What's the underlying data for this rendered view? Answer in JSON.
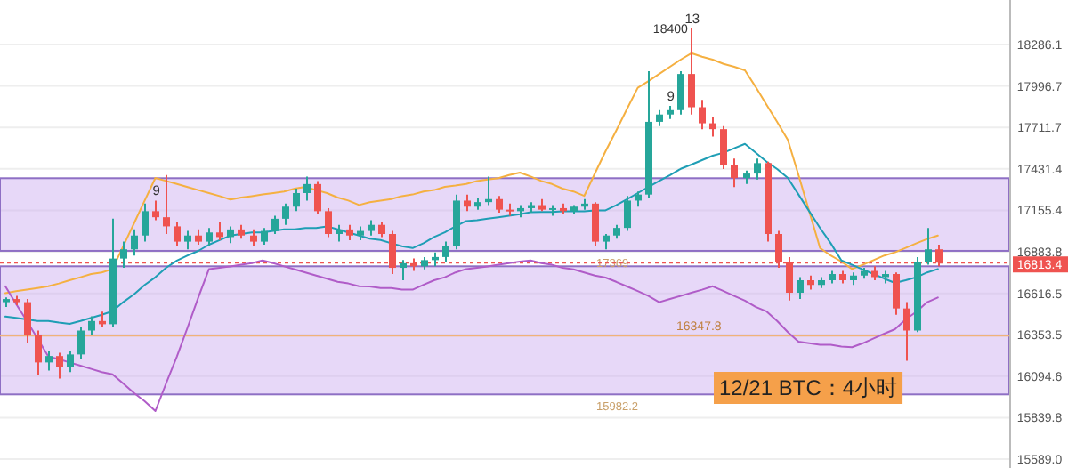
{
  "chart_data": {
    "type": "candlestick",
    "title": "12/21 BTC：4小时",
    "categories": [
      null,
      null,
      null,
      null,
      null,
      null,
      null,
      null,
      null,
      null,
      null,
      null,
      null,
      null,
      null,
      null,
      null,
      null,
      null,
      null,
      null,
      null,
      null,
      null,
      null,
      null,
      null,
      null,
      null,
      null,
      null,
      null,
      null,
      null,
      null,
      null,
      null,
      null,
      null,
      null,
      null,
      null,
      null,
      null,
      null,
      null,
      null,
      null,
      null,
      null,
      null,
      null,
      null,
      null,
      null,
      null,
      null,
      null,
      null,
      null,
      null,
      null,
      null,
      null,
      null,
      null,
      null,
      null,
      null,
      null,
      null,
      null,
      null,
      null,
      null,
      null,
      null,
      null,
      null,
      null,
      null,
      null,
      null,
      null,
      null,
      null,
      null,
      null
    ],
    "ohlc": [
      [
        16560,
        16590,
        16530,
        16580
      ],
      [
        16580,
        16600,
        16540,
        16560
      ],
      [
        16560,
        16580,
        16300,
        16350
      ],
      [
        16350,
        16380,
        16100,
        16180
      ],
      [
        16180,
        16250,
        16130,
        16220
      ],
      [
        16220,
        16240,
        16080,
        16150
      ],
      [
        16150,
        16250,
        16120,
        16230
      ],
      [
        16230,
        16400,
        16200,
        16380
      ],
      [
        16380,
        16470,
        16350,
        16440
      ],
      [
        16440,
        16500,
        16400,
        16420
      ],
      [
        16420,
        17100,
        16400,
        16840
      ],
      [
        16840,
        16950,
        16780,
        16900
      ],
      [
        16900,
        17030,
        16860,
        16990
      ],
      [
        16990,
        17200,
        16950,
        17150
      ],
      [
        17150,
        17220,
        17090,
        17110
      ],
      [
        17110,
        17390,
        17000,
        17050
      ],
      [
        17050,
        17080,
        16920,
        16950
      ],
      [
        16950,
        17020,
        16900,
        16990
      ],
      [
        16990,
        17030,
        16930,
        16950
      ],
      [
        16950,
        17040,
        16920,
        17010
      ],
      [
        17010,
        17080,
        16960,
        16980
      ],
      [
        16980,
        17050,
        16940,
        17030
      ],
      [
        17030,
        17060,
        16970,
        16990
      ],
      [
        16990,
        17030,
        16920,
        16950
      ],
      [
        16950,
        17040,
        16930,
        17020
      ],
      [
        17020,
        17120,
        17000,
        17100
      ],
      [
        17100,
        17200,
        17060,
        17180
      ],
      [
        17180,
        17300,
        17150,
        17270
      ],
      [
        17270,
        17380,
        17220,
        17330
      ],
      [
        17330,
        17350,
        17130,
        17150
      ],
      [
        17150,
        17170,
        16980,
        17000
      ],
      [
        17000,
        17060,
        16950,
        17030
      ],
      [
        17030,
        17060,
        16960,
        16990
      ],
      [
        16990,
        17050,
        16960,
        17020
      ],
      [
        17020,
        17090,
        16990,
        17060
      ],
      [
        17060,
        17080,
        16980,
        17000
      ],
      [
        17000,
        17020,
        16740,
        16780
      ],
      [
        16780,
        16830,
        16700,
        16810
      ],
      [
        16810,
        16840,
        16760,
        16790
      ],
      [
        16790,
        16850,
        16770,
        16830
      ],
      [
        16830,
        16880,
        16790,
        16850
      ],
      [
        16850,
        16950,
        16820,
        16920
      ],
      [
        16920,
        17260,
        16900,
        17220
      ],
      [
        17220,
        17260,
        17150,
        17180
      ],
      [
        17180,
        17240,
        17160,
        17210
      ],
      [
        17210,
        17380,
        17190,
        17230
      ],
      [
        17230,
        17250,
        17140,
        17160
      ],
      [
        17160,
        17200,
        17120,
        17150
      ],
      [
        17150,
        17190,
        17110,
        17170
      ],
      [
        17170,
        17210,
        17140,
        17190
      ],
      [
        17190,
        17230,
        17150,
        17160
      ],
      [
        17160,
        17190,
        17120,
        17170
      ],
      [
        17170,
        17200,
        17130,
        17150
      ],
      [
        17150,
        17190,
        17130,
        17180
      ],
      [
        17180,
        17230,
        17160,
        17200
      ],
      [
        17200,
        17210,
        16920,
        16950
      ],
      [
        16950,
        17000,
        16900,
        16990
      ],
      [
        16990,
        17060,
        16970,
        17040
      ],
      [
        17040,
        17250,
        17020,
        17220
      ],
      [
        17220,
        17280,
        17180,
        17260
      ],
      [
        17260,
        18100,
        17240,
        17750
      ],
      [
        17750,
        17830,
        17720,
        17800
      ],
      [
        17800,
        17860,
        17770,
        17830
      ],
      [
        17830,
        18100,
        17800,
        18080
      ],
      [
        18080,
        18400,
        17800,
        17850
      ],
      [
        17850,
        17900,
        17700,
        17740
      ],
      [
        17740,
        17780,
        17650,
        17700
      ],
      [
        17700,
        17720,
        17430,
        17460
      ],
      [
        17460,
        17500,
        17310,
        17370
      ],
      [
        17370,
        17420,
        17330,
        17400
      ],
      [
        17400,
        17500,
        17360,
        17470
      ],
      [
        17470,
        17480,
        16950,
        17000
      ],
      [
        17000,
        17020,
        16780,
        16820
      ],
      [
        16820,
        16850,
        16570,
        16620
      ],
      [
        16620,
        16720,
        16580,
        16700
      ],
      [
        16700,
        16730,
        16640,
        16670
      ],
      [
        16670,
        16720,
        16650,
        16700
      ],
      [
        16700,
        16760,
        16680,
        16740
      ],
      [
        16740,
        16760,
        16680,
        16700
      ],
      [
        16700,
        16750,
        16670,
        16730
      ],
      [
        16730,
        16780,
        16710,
        16760
      ],
      [
        16760,
        16790,
        16700,
        16720
      ],
      [
        16720,
        16760,
        16680,
        16740
      ],
      [
        16740,
        16750,
        16480,
        16520
      ],
      [
        16520,
        16560,
        16190,
        16380
      ],
      [
        16380,
        16850,
        16370,
        16820
      ],
      [
        16820,
        17040,
        16800,
        16900
      ],
      [
        16900,
        16930,
        16790,
        16813.4
      ]
    ],
    "series": [
      {
        "type": "line",
        "color": "#f5b041",
        "values": [
          16617,
          16630,
          16640,
          16650,
          16661,
          16680,
          16700,
          16720,
          16740,
          16750,
          16772,
          16920,
          17070,
          17220,
          17371,
          17350,
          17330,
          17310,
          17290,
          17270,
          17250,
          17227,
          17240,
          17250,
          17260,
          17270,
          17280,
          17300,
          17311,
          17290,
          17270,
          17240,
          17220,
          17191,
          17210,
          17220,
          17230,
          17250,
          17260,
          17280,
          17290,
          17311,
          17320,
          17330,
          17350,
          17360,
          17370,
          17390,
          17407,
          17380,
          17350,
          17330,
          17300,
          17280,
          17251,
          17400,
          17550,
          17690,
          17840,
          17985,
          18030,
          18080,
          18130,
          18180,
          18225,
          18200,
          18180,
          18150,
          18130,
          18105,
          17990,
          17870,
          17750,
          17627,
          17390,
          17150,
          16908,
          16860,
          16820,
          16772,
          16800,
          16830,
          16860,
          16880,
          16910,
          16940,
          16967,
          16990
        ]
      },
      {
        "type": "line",
        "color": "#b05cc8",
        "values": [
          16661,
          16550,
          16440,
          16330,
          16218,
          16200,
          16180,
          16160,
          16140,
          16120,
          16106,
          16050,
          15990,
          15940,
          15880,
          16050,
          16218,
          16400,
          16590,
          16772,
          16780,
          16790,
          16800,
          16810,
          16828,
          16810,
          16790,
          16770,
          16750,
          16730,
          16710,
          16690,
          16680,
          16661,
          16660,
          16650,
          16650,
          16640,
          16640,
          16670,
          16700,
          16720,
          16750,
          16772,
          16780,
          16790,
          16800,
          16810,
          16820,
          16828,
          16810,
          16800,
          16780,
          16770,
          16750,
          16730,
          16717,
          16690,
          16660,
          16630,
          16600,
          16560,
          16580,
          16600,
          16620,
          16640,
          16661,
          16630,
          16600,
          16570,
          16530,
          16502,
          16440,
          16370,
          16310,
          16300,
          16290,
          16290,
          16280,
          16275,
          16300,
          16330,
          16360,
          16388,
          16450,
          16500,
          16560,
          16590
        ]
      },
      {
        "type": "line",
        "color": "#1e9eb5",
        "values": [
          16468,
          16460,
          16450,
          16440,
          16440,
          16430,
          16422,
          16440,
          16460,
          16480,
          16502,
          16560,
          16610,
          16670,
          16720,
          16780,
          16828,
          16860,
          16890,
          16930,
          16960,
          16990,
          17000,
          17010,
          17010,
          17020,
          17030,
          17030,
          17040,
          17040,
          17050,
          17030,
          17010,
          16990,
          16970,
          16960,
          16940,
          16920,
          16908,
          16940,
          16980,
          17010,
          17050,
          17085,
          17090,
          17100,
          17110,
          17120,
          17130,
          17143,
          17145,
          17145,
          17150,
          17150,
          17150,
          17155,
          17155,
          17190,
          17230,
          17270,
          17310,
          17350,
          17390,
          17431,
          17460,
          17490,
          17520,
          17540,
          17570,
          17600,
          17540,
          17480,
          17430,
          17371,
          17260,
          17150,
          17040,
          16940,
          16828,
          16800,
          16770,
          16740,
          16710,
          16683,
          16700,
          16720,
          16750,
          16772
        ]
      }
    ],
    "ylim": [
      15536,
      18602
    ],
    "log": true,
    "yticks": [
      18286.1,
      17996.7,
      17711.7,
      17431.4,
      17155.4,
      16883.8,
      16616.5,
      16353.5,
      16094.6,
      15839.8,
      {
        "value": 15589,
        "label": "15589.0"
      }
    ],
    "tick_labels": "y",
    "grid": "y",
    "bands": [
      {
        "axis": "y",
        "from": 15982.2,
        "to": 16790,
        "label": "15982.2",
        "color": "#c9a8f0"
      },
      {
        "axis": "y",
        "from": 16890,
        "to": 17369,
        "label": "17369",
        "color": "#c9a8f0"
      }
    ],
    "ref_lines": [
      {
        "axis": "y",
        "value": 16347.8,
        "label": "16347.8",
        "color": "#f0b27a",
        "line_style": "solid"
      },
      {
        "axis": "y",
        "value": 16813.4,
        "label": "16813.4",
        "color": "#ef5350",
        "line_style": "dotted"
      }
    ],
    "annotations": [
      {
        "text": "13",
        "y": 18400
      },
      "18400",
      {
        "text": "9",
        "y": 17220
      },
      {
        "text": "9",
        "y": 17860
      }
    ]
  }
}
